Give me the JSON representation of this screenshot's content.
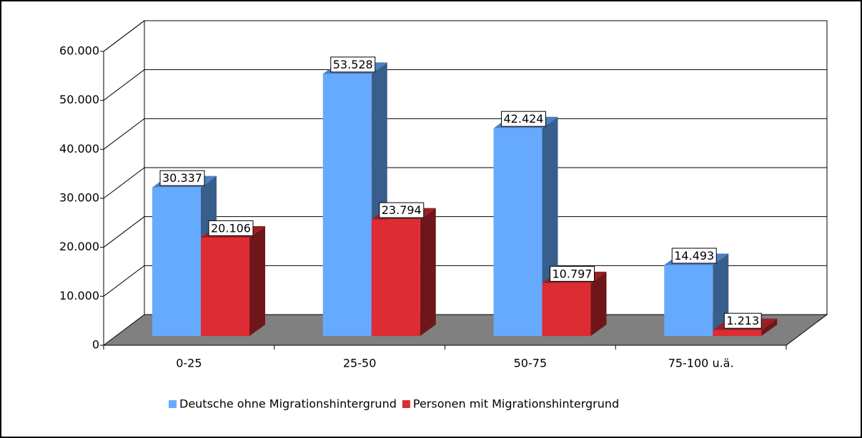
{
  "chart_data": {
    "type": "bar3d",
    "categories": [
      "0-25",
      "25-50",
      "50-75",
      "75-100 u.ä."
    ],
    "series": [
      {
        "name": "Deutsche ohne Migrationshintergrund",
        "color": "#66aaff",
        "values": [
          30337,
          53528,
          42424,
          14493
        ],
        "value_labels": [
          "30.337",
          "53.528",
          "42.424",
          "14.493"
        ]
      },
      {
        "name": "Personen mit Migrationshintergrund",
        "color": "#dd2c33",
        "values": [
          20106,
          23794,
          10797,
          1213
        ],
        "value_labels": [
          "20.106",
          "23.794",
          "10.797",
          "1.213"
        ]
      }
    ],
    "ylim": [
      0,
      60000
    ],
    "yticks": [
      0,
      {
        "value": 10000,
        "label": "10.000"
      },
      {
        "value": 20000,
        "label": "20.000"
      },
      {
        "value": 30000,
        "label": "30.000"
      },
      {
        "value": 40000,
        "label": "40.000"
      },
      {
        "value": 50000,
        "label": "50.000"
      },
      {
        "value": 60000,
        "label": "60.000"
      }
    ],
    "grid": true,
    "legend": "bottom"
  }
}
